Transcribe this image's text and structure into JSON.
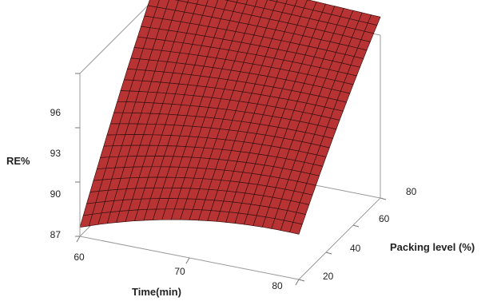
{
  "chart_data": {
    "type": "surface",
    "title": "",
    "zlabel": "RE%",
    "xlabel": "Time(min)",
    "ylabel": "Packing level (%)",
    "x_ticks": [
      "60",
      "70",
      "80"
    ],
    "y_ticks": [
      "20",
      "40",
      "60",
      "80"
    ],
    "z_ticks": [
      "87",
      "90",
      "93",
      "96"
    ],
    "xlim": [
      60,
      80
    ],
    "ylim": [
      20,
      80
    ],
    "zlim": [
      87,
      96
    ],
    "surface_color": "#b83434",
    "mesh_color": "#3a1010",
    "corners": [
      {
        "time": 60,
        "packing": 20,
        "re": 87.5
      },
      {
        "time": 80,
        "packing": 20,
        "re": 89.5
      },
      {
        "time": 60,
        "packing": 80,
        "re": 97.5
      },
      {
        "time": 80,
        "packing": 80,
        "re": 97.0
      }
    ]
  }
}
